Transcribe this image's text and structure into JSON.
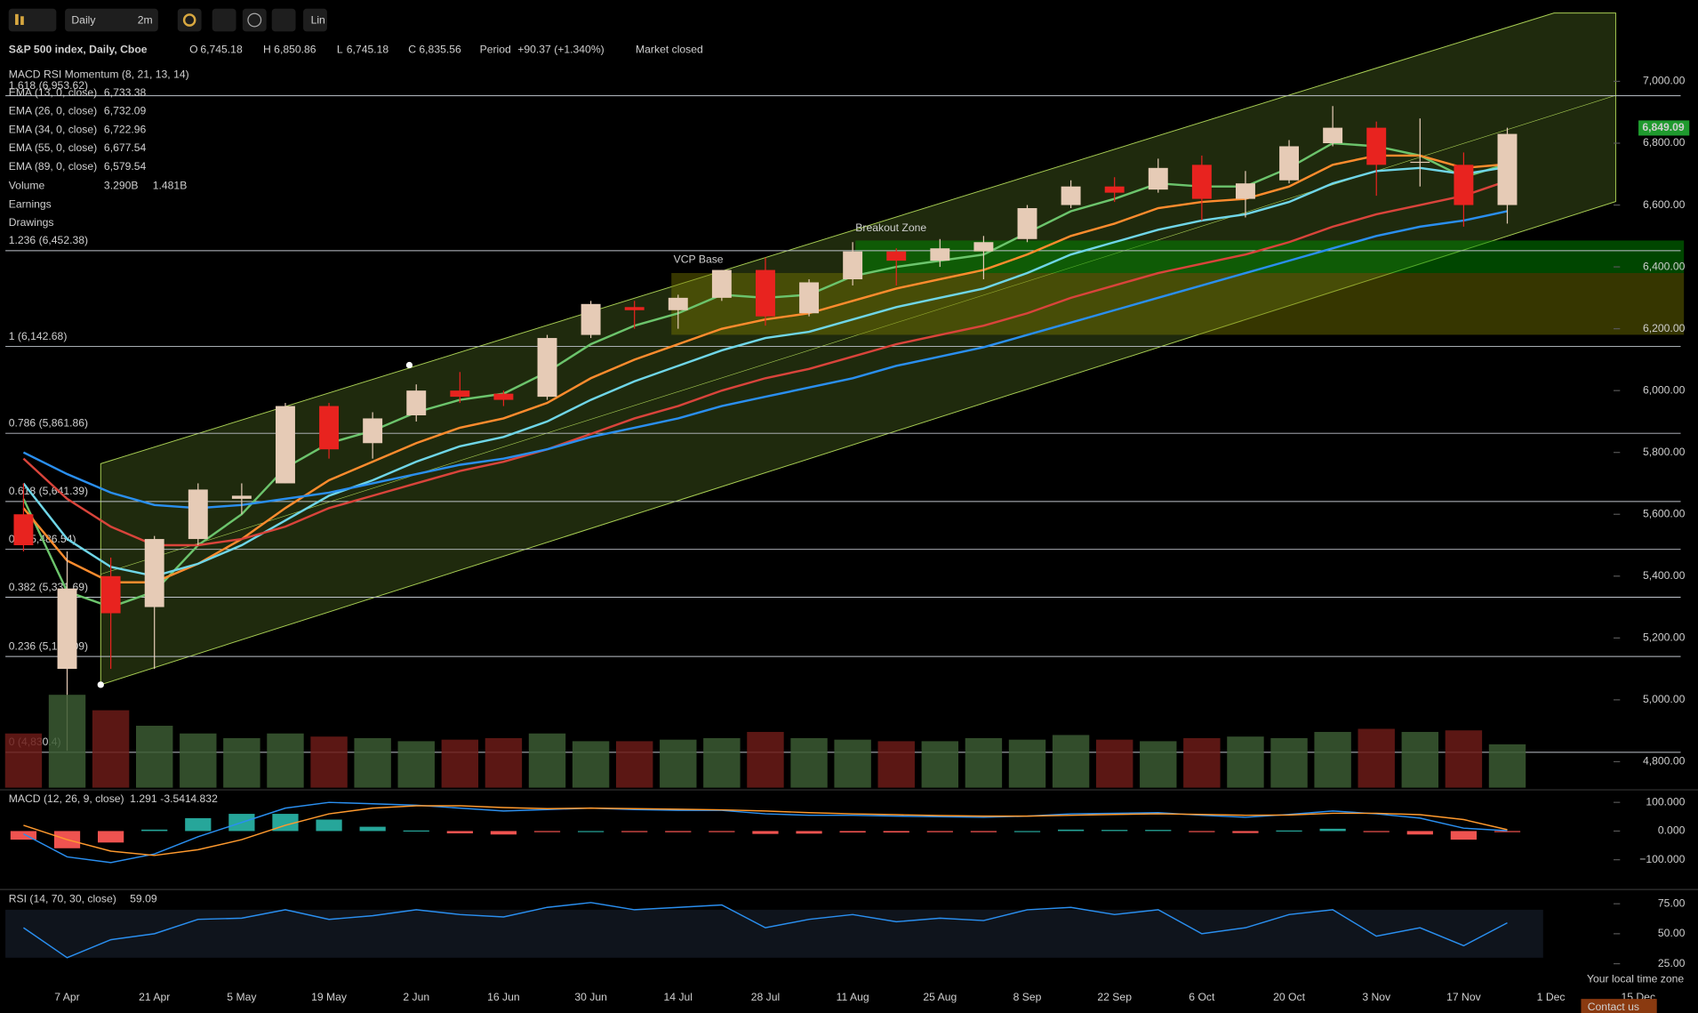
{
  "toolbar": {
    "interval": "Daily",
    "range": "2m",
    "scale": "Lin"
  },
  "header": {
    "symbol": "S&P 500 index, Daily, Cboe",
    "o_key": "O",
    "o": "6,745.18",
    "h_key": "H",
    "h": "6,850.86",
    "l_key": "L",
    "l": "6,745.18",
    "c_key": "C",
    "c": "6,835.56",
    "period_key": "Period",
    "period": "+90.37 (+1.340%)",
    "status": "Market closed"
  },
  "legend": {
    "study": "MACD RSI Momentum (8, 21, 13, 14)",
    "earnings": "Earnings",
    "drawings": "Drawings"
  },
  "annotations": {
    "breakout": "Breakout Zone",
    "vcp": "VCP Base"
  },
  "footer": {
    "timezone": "Your local time zone",
    "contact": "Contact us"
  },
  "chart_data": [
    {
      "type": "candlestick",
      "categories": [
        null,
        "7 Apr",
        null,
        "21 Apr",
        null,
        "5 May",
        null,
        "19 May",
        null,
        "2 Jun",
        null,
        "16 Jun",
        null,
        "30 Jun",
        null,
        "14 Jul",
        null,
        "28 Jul",
        null,
        "11 Aug",
        null,
        "25 Aug",
        null,
        "8 Sep",
        null,
        "22 Sep",
        null,
        "6 Oct",
        null,
        "20 Oct",
        null,
        "3 Nov",
        null,
        "17 Nov",
        null,
        "1 Dec",
        null,
        "15 Dec"
      ],
      "open": [
        5600,
        5100,
        5400,
        5300,
        5520,
        5650,
        5700,
        5950,
        5830,
        5920,
        6000,
        5990,
        5980,
        6180,
        6270,
        6260,
        6300,
        6390,
        6250,
        6360,
        6450,
        6420,
        6450,
        6490,
        6600,
        6660,
        6650,
        6730,
        6620,
        6680,
        6800,
        6850,
        6740,
        6730,
        6600,
        null,
        null,
        null
      ],
      "high": [
        5700,
        5480,
        5460,
        5530,
        5700,
        5700,
        5960,
        5960,
        5930,
        6020,
        6060,
        6000,
        6180,
        6290,
        6290,
        6310,
        6390,
        6430,
        6360,
        6480,
        6460,
        6490,
        6500,
        6600,
        6680,
        6690,
        6750,
        6760,
        6710,
        6810,
        6920,
        6870,
        6880,
        6770,
        6850,
        null,
        null,
        null
      ],
      "low": [
        5480,
        4835,
        5100,
        5100,
        5500,
        5600,
        5700,
        5780,
        5780,
        5900,
        5960,
        5950,
        5970,
        6170,
        6200,
        6200,
        6290,
        6210,
        6240,
        6340,
        6340,
        6400,
        6360,
        6480,
        6590,
        6610,
        6640,
        6550,
        6560,
        6670,
        6790,
        6630,
        6660,
        6530,
        6540,
        null,
        null,
        null
      ],
      "close": [
        5500,
        5360,
        5280,
        5520,
        5680,
        5660,
        5950,
        5810,
        5910,
        6000,
        5980,
        5970,
        6170,
        6280,
        6260,
        6300,
        6390,
        6240,
        6350,
        6450,
        6420,
        6460,
        6480,
        6590,
        6660,
        6640,
        6720,
        6620,
        6670,
        6790,
        6850,
        6730,
        6740,
        6600,
        6830,
        null,
        null,
        null
      ],
      "up_color": "#e6cbb6",
      "down_color": "#e8231f",
      "series": [
        {
          "name": "EMA (13, 0, close)",
          "color": "#6cc46c",
          "legend_value": "6,733.38",
          "values": [
            5650,
            5350,
            5300,
            5350,
            5500,
            5600,
            5750,
            5830,
            5870,
            5930,
            5970,
            5990,
            6060,
            6150,
            6210,
            6250,
            6310,
            6300,
            6310,
            6370,
            6400,
            6420,
            6440,
            6510,
            6580,
            6620,
            6670,
            6660,
            6660,
            6720,
            6800,
            6790,
            6760,
            6690,
            6733,
            null,
            null,
            null
          ]
        },
        {
          "name": "EMA (26, 0, close)",
          "color": "#ff8c2e",
          "legend_value": "6,732.09",
          "values": [
            5620,
            5450,
            5380,
            5380,
            5440,
            5520,
            5620,
            5710,
            5770,
            5830,
            5880,
            5910,
            5960,
            6040,
            6100,
            6150,
            6200,
            6230,
            6250,
            6290,
            6330,
            6360,
            6390,
            6440,
            6500,
            6540,
            6590,
            6610,
            6620,
            6660,
            6730,
            6760,
            6760,
            6720,
            6732,
            null,
            null,
            null
          ]
        },
        {
          "name": "EMA (34, 0, close)",
          "color": "#6fd6e8",
          "legend_value": "6,722.96",
          "values": [
            5700,
            5520,
            5430,
            5400,
            5440,
            5500,
            5580,
            5660,
            5710,
            5770,
            5820,
            5850,
            5900,
            5970,
            6030,
            6080,
            6130,
            6170,
            6190,
            6230,
            6270,
            6300,
            6330,
            6380,
            6440,
            6480,
            6520,
            6550,
            6570,
            6610,
            6670,
            6710,
            6720,
            6700,
            6723,
            null,
            null,
            null
          ]
        },
        {
          "name": "EMA (55, 0, close)",
          "color": "#d9443b",
          "legend_value": "6,677.54",
          "values": [
            5780,
            5650,
            5560,
            5500,
            5500,
            5520,
            5560,
            5620,
            5660,
            5700,
            5740,
            5770,
            5810,
            5860,
            5910,
            5950,
            6000,
            6040,
            6070,
            6110,
            6150,
            6180,
            6210,
            6250,
            6300,
            6340,
            6380,
            6410,
            6440,
            6480,
            6530,
            6570,
            6600,
            6630,
            6678,
            null,
            null,
            null
          ]
        },
        {
          "name": "EMA (89, 0, close)",
          "color": "#2a8ff0",
          "legend_value": "6,579.54",
          "values": [
            5800,
            5730,
            5670,
            5630,
            5620,
            5630,
            5650,
            5670,
            5700,
            5730,
            5760,
            5780,
            5810,
            5850,
            5880,
            5910,
            5950,
            5980,
            6010,
            6040,
            6080,
            6110,
            6140,
            6180,
            6220,
            6260,
            6300,
            6340,
            6380,
            6420,
            6460,
            6500,
            6530,
            6550,
            6580,
            null,
            null,
            null
          ]
        }
      ],
      "levels": [
        {
          "value": 4830.4,
          "label": "0 (4,830.4)"
        },
        {
          "value": 5140.09,
          "label": "0.236 (5,140.09)"
        },
        {
          "value": 5331.69,
          "label": "0.382 (5,331.69)"
        },
        {
          "value": 5486.54,
          "label": "0.5 (5,486.54)"
        },
        {
          "value": 5641.39,
          "label": "0.618 (5,641.39)"
        },
        {
          "value": 5861.86,
          "label": "0.786 (5,861.86)"
        },
        {
          "value": 6142.68,
          "label": "1 (6,142.68)"
        },
        {
          "value": 6452.38,
          "label": "1.236 (6,452.38)"
        },
        {
          "value": 6953.62,
          "label": "1.618 (6,953.62)"
        }
      ],
      "price_tag": {
        "value": 6849.09,
        "label": "6,849.09"
      },
      "ylim": [
        4716,
        7235
      ],
      "yticks": [
        {
          "value": 4800,
          "label": "4,800.00"
        },
        {
          "value": 5000,
          "label": "5,000.00"
        },
        {
          "value": 5200,
          "label": "5,200.00"
        },
        {
          "value": 5400,
          "label": "5,400.00"
        },
        {
          "value": 5600,
          "label": "5,600.00"
        },
        {
          "value": 5800,
          "label": "5,800.00"
        },
        {
          "value": 6000,
          "label": "6,000.00"
        },
        {
          "value": 6200,
          "label": "6,200.00"
        },
        {
          "value": 6400,
          "label": "6,400.00"
        },
        {
          "value": 6600,
          "label": "6,600.00"
        },
        {
          "value": 6800,
          "label": "6,800.00"
        },
        {
          "value": 7000,
          "label": "7,000.00"
        }
      ]
    },
    {
      "type": "bar",
      "name": "Volume",
      "legend_values": [
        "3.290B",
        "1.481B"
      ],
      "up_color": "#3b5a32",
      "down_color": "#6b1b18",
      "values": [
        3.5,
        6,
        5,
        4,
        3.5,
        3.2,
        3.5,
        3.3,
        3.2,
        3.0,
        3.1,
        3.2,
        3.5,
        3.0,
        3.0,
        3.1,
        3.2,
        3.6,
        3.2,
        3.1,
        3.0,
        3.0,
        3.2,
        3.1,
        3.4,
        3.1,
        3.0,
        3.2,
        3.3,
        3.2,
        3.6,
        3.8,
        3.6,
        3.7,
        2.8,
        null,
        null,
        null
      ],
      "ylim": [
        0,
        7
      ]
    },
    {
      "type": "macd",
      "title": "MACD (12, 26, 9, close)",
      "legend_values": [
        "1.291",
        "-3.541",
        "4.832"
      ],
      "series": [
        {
          "name": "MACD",
          "color": "#2a8ff0",
          "values": [
            -10,
            -90,
            -110,
            -80,
            -20,
            30,
            80,
            100,
            95,
            90,
            80,
            70,
            75,
            80,
            75,
            72,
            72,
            60,
            55,
            55,
            52,
            50,
            48,
            52,
            60,
            62,
            64,
            55,
            48,
            58,
            70,
            60,
            45,
            10,
            1.291,
            null,
            null,
            null
          ]
        },
        {
          "name": "Signal",
          "color": "#ff9a2e",
          "values": [
            20,
            -30,
            -70,
            -85,
            -65,
            -30,
            20,
            60,
            80,
            88,
            88,
            82,
            78,
            80,
            78,
            76,
            74,
            70,
            64,
            60,
            57,
            54,
            52,
            52,
            55,
            58,
            60,
            58,
            55,
            56,
            62,
            62,
            57,
            40,
            4.832,
            null,
            null,
            null
          ]
        }
      ],
      "histogram": [
        -30,
        -60,
        -40,
        5,
        45,
        60,
        60,
        40,
        15,
        2,
        -8,
        -12,
        -3,
        0,
        -3,
        -4,
        -2,
        -10,
        -9,
        -5,
        -5,
        -4,
        -4,
        0,
        5,
        4,
        4,
        -3,
        -7,
        2,
        8,
        -2,
        -12,
        -30,
        -3.541,
        null,
        null,
        null
      ],
      "hist_colors": [
        "#26a69a",
        "#ef5350"
      ],
      "ylim": [
        -200,
        140
      ],
      "yticks": [
        {
          "value": 100,
          "label": "100.000"
        },
        {
          "value": 0,
          "label": "0.000"
        },
        {
          "value": -100,
          "label": "−100.000"
        }
      ]
    },
    {
      "type": "line",
      "title": "RSI (14, 70, 30, close)",
      "legend_values": [
        "59.09"
      ],
      "color": "#2a8ff0",
      "band": [
        30,
        70
      ],
      "values": [
        55,
        30,
        45,
        50,
        62,
        63,
        70,
        62,
        65,
        70,
        66,
        64,
        72,
        76,
        70,
        72,
        74,
        55,
        62,
        66,
        60,
        63,
        61,
        70,
        72,
        66,
        70,
        50,
        55,
        66,
        70,
        48,
        55,
        40,
        59.09,
        null,
        null,
        null
      ],
      "ylim": [
        11,
        86
      ],
      "yticks": [
        {
          "value": 75,
          "label": "75.00"
        },
        {
          "value": 50,
          "label": "50.00"
        },
        {
          "value": 25,
          "label": "25.00"
        }
      ]
    }
  ]
}
